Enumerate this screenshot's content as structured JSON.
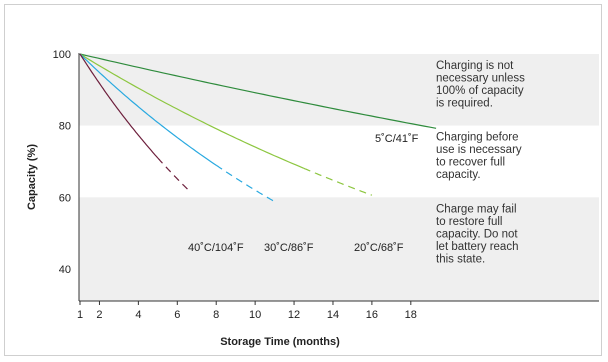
{
  "chart_data": {
    "type": "line",
    "xlabel": "Storage Time (months)",
    "ylabel": "Capacity (%)",
    "xlim": [
      1,
      19.5
    ],
    "ylim": [
      32,
      100
    ],
    "x_ticks": [
      1,
      2,
      4,
      6,
      8,
      10,
      12,
      14,
      16,
      18
    ],
    "y_ticks": [
      40,
      60,
      80,
      100
    ],
    "grid": false,
    "zones": [
      {
        "y_range": [
          80,
          100
        ],
        "shade": "#efefef",
        "text": [
          "Charging is not",
          "necessary unless",
          "100% of capacity",
          "is required."
        ]
      },
      {
        "y_range": [
          60,
          80
        ],
        "shade": "#ffffff",
        "text": [
          "Charging before",
          "use is necessary",
          "to recover full",
          "capacity."
        ]
      },
      {
        "y_range": [
          32,
          60
        ],
        "shade": "#efefef",
        "text": [
          "Charge may fail",
          "to restore full",
          "capacity. Do not",
          "let battery reach",
          "this state."
        ]
      }
    ],
    "series": [
      {
        "name": "5˚C/41˚F",
        "color": "#2e8b3c",
        "k": 0.0127,
        "x_solid_end": 19.3,
        "x_end": 19.3
      },
      {
        "name": "20˚C/68˚F",
        "color": "#8cc63f",
        "k": 0.0334,
        "x_solid_end": 12.5,
        "x_end": 16
      },
      {
        "name": "30˚C/86˚F",
        "color": "#29a9e0",
        "k": 0.0531,
        "x_solid_end": 8,
        "x_end": 11
      },
      {
        "name": "40˚C/104˚F",
        "color": "#6d1f3c",
        "k": 0.0857,
        "x_solid_end": 5,
        "x_end": 6.7
      }
    ]
  }
}
